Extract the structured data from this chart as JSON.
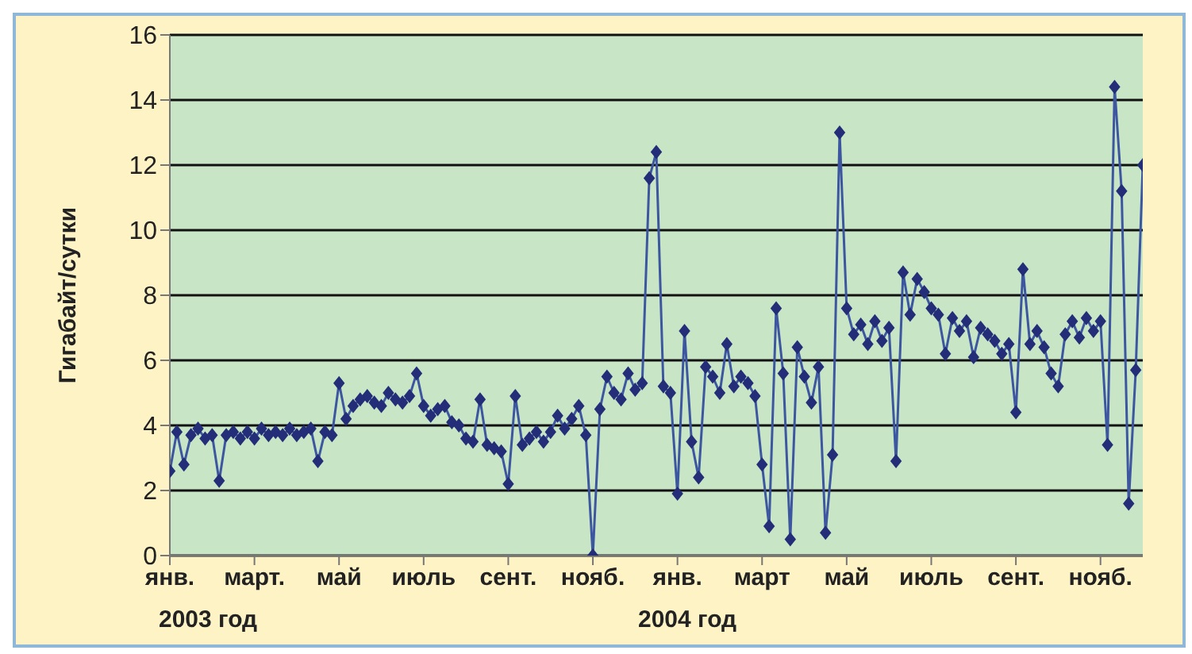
{
  "chart_data": {
    "type": "line",
    "ylabel": "Гигабайт/сутки",
    "marker": "diamond",
    "grid": "y",
    "legend": false,
    "ylim": [
      0,
      16
    ],
    "yticks": [
      0,
      2,
      4,
      6,
      8,
      10,
      12,
      14,
      16
    ],
    "annotations": [
      "2003 год",
      "2004 год"
    ],
    "categories": [
      "янв.",
      null,
      null,
      null,
      null,
      null,
      null,
      null,
      null,
      null,
      null,
      null,
      "март.",
      null,
      null,
      null,
      null,
      null,
      null,
      null,
      null,
      null,
      null,
      null,
      "май",
      null,
      null,
      null,
      null,
      null,
      null,
      null,
      null,
      null,
      null,
      null,
      "июль",
      null,
      null,
      null,
      null,
      null,
      null,
      null,
      null,
      null,
      null,
      null,
      "сент.",
      null,
      null,
      null,
      null,
      null,
      null,
      null,
      null,
      null,
      null,
      null,
      "нояб.",
      null,
      null,
      null,
      null,
      null,
      null,
      null,
      null,
      null,
      null,
      null,
      "янв.",
      null,
      null,
      null,
      null,
      null,
      null,
      null,
      null,
      null,
      null,
      null,
      "март",
      null,
      null,
      null,
      null,
      null,
      null,
      null,
      null,
      null,
      null,
      null,
      "май",
      null,
      null,
      null,
      null,
      null,
      null,
      null,
      null,
      null,
      null,
      null,
      "июль",
      null,
      null,
      null,
      null,
      null,
      null,
      null,
      null,
      null,
      null,
      null,
      "сент.",
      null,
      null,
      null,
      null,
      null,
      null,
      null,
      null,
      null,
      null,
      null,
      "нояб.",
      null,
      null,
      null,
      null,
      null,
      null
    ],
    "series": [
      {
        "color": "#232d78",
        "values": [
          2.6,
          3.8,
          2.8,
          3.7,
          3.9,
          3.6,
          3.7,
          2.3,
          3.7,
          3.8,
          3.6,
          3.8,
          3.6,
          3.9,
          3.7,
          3.8,
          3.7,
          3.9,
          3.7,
          3.8,
          3.9,
          2.9,
          3.8,
          3.7,
          5.3,
          4.2,
          4.6,
          4.8,
          4.9,
          4.7,
          4.6,
          5.0,
          4.8,
          4.7,
          4.9,
          5.6,
          4.6,
          4.3,
          4.5,
          4.6,
          4.1,
          4.0,
          3.6,
          3.5,
          4.8,
          3.4,
          3.3,
          3.2,
          2.2,
          4.9,
          3.4,
          3.6,
          3.8,
          3.5,
          3.8,
          4.3,
          3.9,
          4.2,
          4.6,
          3.7,
          0,
          4.5,
          5.5,
          5.0,
          4.8,
          5.6,
          5.1,
          5.3,
          11.6,
          12.4,
          5.2,
          5.0,
          1.9,
          6.9,
          3.5,
          2.4,
          5.8,
          5.5,
          5.0,
          6.5,
          5.2,
          5.5,
          5.3,
          4.9,
          2.8,
          0.9,
          7.6,
          5.6,
          0.5,
          6.4,
          5.5,
          4.7,
          5.8,
          0.7,
          3.1,
          13.0,
          7.6,
          6.8,
          7.1,
          6.5,
          7.2,
          6.6,
          7.0,
          2.9,
          8.7,
          7.4,
          8.5,
          8.1,
          7.6,
          7.4,
          6.2,
          7.3,
          6.9,
          7.2,
          6.1,
          7.0,
          6.8,
          6.6,
          6.2,
          6.5,
          4.4,
          8.8,
          6.5,
          6.9,
          6.4,
          5.6,
          5.2,
          6.8,
          7.2,
          6.7,
          7.3,
          6.9,
          7.2,
          3.4,
          14.4,
          11.2,
          1.6,
          5.7,
          12.0
        ]
      }
    ]
  }
}
